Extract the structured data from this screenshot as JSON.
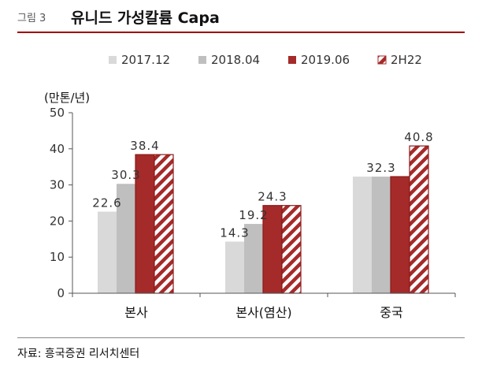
{
  "figure": {
    "label": "그림 3",
    "title": "유니드 가성칼륨 Capa"
  },
  "source": "자료: 흥국증권 리서치센터",
  "colors": {
    "title_rule": "#a00000",
    "series": [
      "#d9d9d9",
      "#bfbfbf",
      "#a52a2a",
      "#a52a2a"
    ]
  },
  "chart_data": {
    "type": "bar",
    "unit_label": "(만톤/년)",
    "categories": [
      "본사",
      "본사(염산)",
      "중국"
    ],
    "series": [
      {
        "name": "2017.12",
        "values": [
          22.6,
          14.3,
          32.3
        ],
        "style": "solid-light-gray"
      },
      {
        "name": "2018.04",
        "values": [
          30.3,
          19.2,
          32.3
        ],
        "style": "solid-gray"
      },
      {
        "name": "2019.06",
        "values": [
          38.4,
          24.3,
          32.3
        ],
        "style": "solid-red"
      },
      {
        "name": "2H22",
        "values": [
          38.4,
          24.3,
          40.8
        ],
        "style": "hatched-red"
      }
    ],
    "data_labels": [
      {
        "category": 0,
        "series": 0,
        "text": "22.6"
      },
      {
        "category": 0,
        "series": 1,
        "text": "30.3"
      },
      {
        "category": 0,
        "series": 2,
        "text": "38.4"
      },
      {
        "category": 1,
        "series": 0,
        "text": "14.3"
      },
      {
        "category": 1,
        "series": 1,
        "text": "19.2"
      },
      {
        "category": 1,
        "series": 2,
        "text": "24.3"
      },
      {
        "category": 2,
        "series": 1,
        "text": "32.3"
      },
      {
        "category": 2,
        "series": 3,
        "text": "40.8"
      }
    ],
    "yticks": [
      "0",
      "10",
      "20",
      "30",
      "40",
      "50"
    ],
    "ylim": [
      0,
      50
    ],
    "grid": false,
    "legend_position": "top"
  }
}
